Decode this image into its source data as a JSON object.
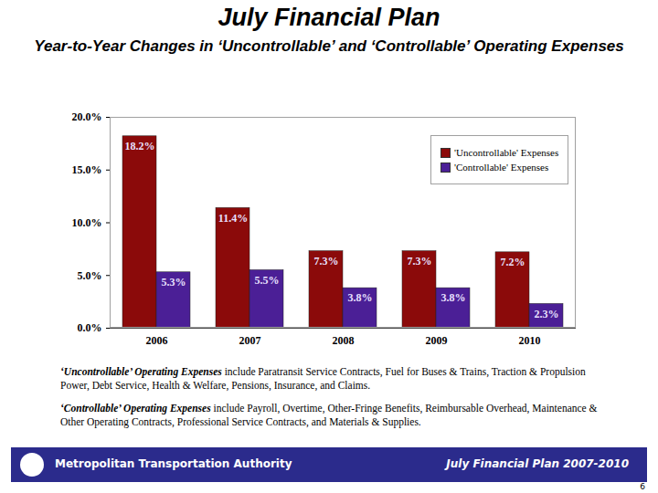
{
  "chart_data": {
    "type": "bar",
    "title": "July Financial Plan",
    "subtitle": "Year-to-Year Changes in ‘Uncontrollable’ and ‘Controllable’ Operating Expenses",
    "categories": [
      "2006",
      "2007",
      "2008",
      "2009",
      "2010"
    ],
    "series": [
      {
        "name": "'Uncontrollable' Expenses",
        "color": "#8b0a0a",
        "values": [
          18.2,
          11.4,
          7.3,
          7.3,
          7.2
        ],
        "value_labels": [
          "18.2%",
          "11.4%",
          "7.3%",
          "7.3%",
          "7.2%"
        ]
      },
      {
        "name": "'Controllable' Expenses",
        "color": "#4b1f96",
        "values": [
          5.3,
          5.5,
          3.8,
          3.8,
          2.3
        ],
        "value_labels": [
          "5.3%",
          "5.5%",
          "3.8%",
          "3.8%",
          "2.3%"
        ]
      }
    ],
    "ylim": [
      0,
      20
    ],
    "yticks": [
      {
        "value": 0,
        "label": "0.0%"
      },
      {
        "value": 5,
        "label": "5.0%"
      },
      {
        "value": 10,
        "label": "10.0%"
      },
      {
        "value": 15,
        "label": "15.0%"
      },
      {
        "value": 20,
        "label": "20.0%"
      }
    ],
    "grid": false,
    "legend": "top-right",
    "data_labels": true
  },
  "notes": [
    {
      "term": "‘Uncontrollable’ Operating Expenses",
      "text": " include Paratransit Service Contracts, Fuel for Buses & Trains, Traction & Propulsion Power, Debt Service, Health & Welfare, Pensions, Insurance, and Claims."
    },
    {
      "term": "‘Controllable’ Operating Expenses",
      "text": " include Payroll, Overtime, Other-Fringe Benefits, Reimbursable Overhead, Maintenance & Other Operating Contracts, Professional Service Contracts, and Materials & Supplies."
    }
  ],
  "footer": {
    "left": "Metropolitan Transportation Authority",
    "right": "July Financial Plan 2007-2010",
    "page": "6"
  }
}
